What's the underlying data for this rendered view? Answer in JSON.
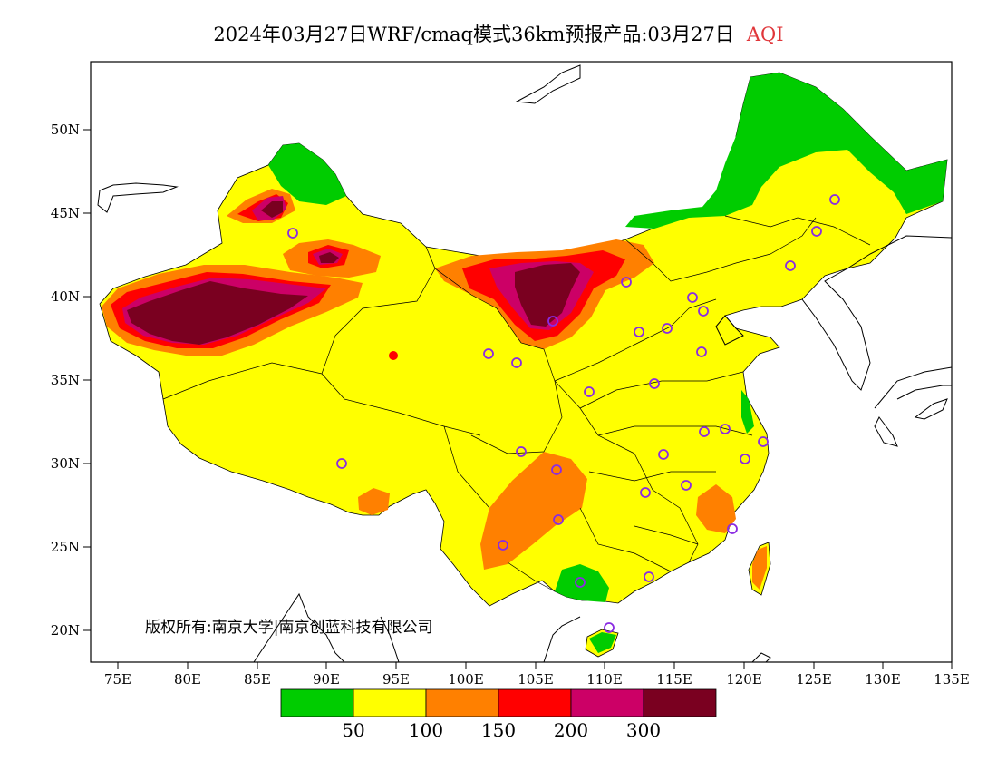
{
  "title": {
    "main": "2024年03月27日WRF/cmaq模式36km预报产品:03月27日",
    "variable": "AQI"
  },
  "copyright": "版权所有:南京大学|南京创蓝科技有限公司",
  "axes": {
    "lat_labels": [
      "50N",
      "45N",
      "40N",
      "35N",
      "30N",
      "25N",
      "20N"
    ],
    "lon_labels": [
      "75E",
      "80E",
      "85E",
      "90E",
      "95E",
      "100E",
      "105E",
      "110E",
      "115E",
      "120E",
      "125E",
      "130E",
      "135E"
    ]
  },
  "legend": {
    "colors": [
      "#00cc00",
      "#ffff00",
      "#ff8000",
      "#ff0000",
      "#cc0066",
      "#7a0020"
    ],
    "labels": [
      "50",
      "100",
      "150",
      "200",
      "300"
    ]
  },
  "colors": {
    "ocean": "#ffffff",
    "good": "#00cc00",
    "moderate": "#ffff00",
    "sensitive": "#ff8000",
    "unhealthy": "#ff0000",
    "very_unhealthy": "#cc0066",
    "hazardous": "#7a0020",
    "station_marker": "#8a2be2"
  }
}
